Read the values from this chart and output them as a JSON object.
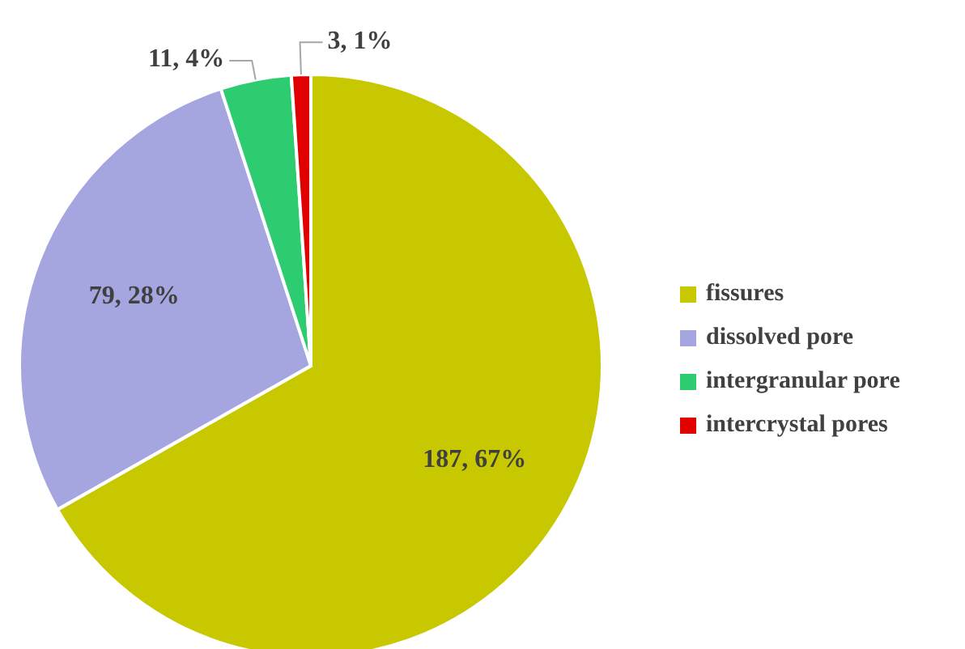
{
  "chart_data": {
    "type": "pie",
    "categories": [
      "fissures",
      "dissolved pore",
      "intergranular pore",
      "intercrystal pores"
    ],
    "values": [
      187,
      79,
      11,
      3
    ],
    "colors": [
      "#c8c800",
      "#a5a5e0",
      "#2ecc71",
      "#e00000"
    ],
    "value_labels": [
      "187, 67%",
      "79, 28%",
      "11, 4%",
      "3, 1%"
    ],
    "legend": "right"
  }
}
